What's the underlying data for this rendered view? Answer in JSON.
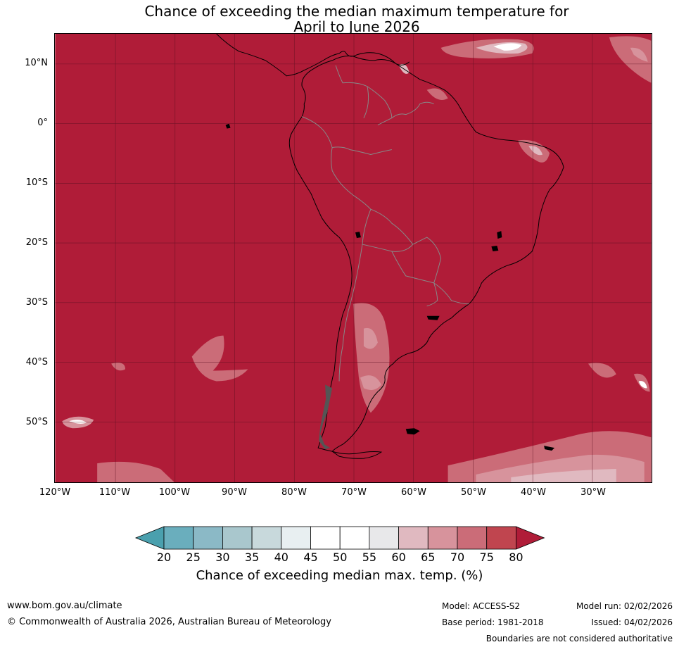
{
  "title": {
    "line1": "Chance of exceeding the median maximum temperature for",
    "line2": "April to June 2026"
  },
  "map": {
    "region": "South America",
    "background_class": "80+",
    "latitude_labels": [
      "10°N",
      "0°",
      "10°S",
      "20°S",
      "30°S",
      "40°S",
      "50°S"
    ],
    "longitude_labels": [
      "120°W",
      "110°W",
      "100°W",
      "90°W",
      "80°W",
      "70°W",
      "60°W",
      "50°W",
      "40°W",
      "30°W"
    ]
  },
  "colorbar": {
    "tick_labels": [
      "20",
      "25",
      "30",
      "35",
      "40",
      "45",
      "50",
      "55",
      "60",
      "65",
      "70",
      "75",
      "80"
    ],
    "colors": {
      "below_20": "#4aa0ae",
      "20-25": "#6aaebd",
      "25-30": "#8bb9c6",
      "30-35": "#a9c7cd",
      "35-40": "#c8d9dc",
      "40-45": "#e8eff1",
      "45-50": "#ffffff",
      "50-55": "#ffffff",
      "55-60": "#e8e8ea",
      "60-65": "#e0b9c0",
      "65-70": "#d7939c",
      "70-75": "#cb6c78",
      "75-80": "#c0454f",
      "above_80": "#b01c38"
    },
    "label": "Chance of exceeding median max. temp. (%)"
  },
  "footer": {
    "website": "www.bom.gov.au/climate",
    "copyright": "© Commonwealth of Australia 2026, Australian Bureau of Meteorology",
    "model": "Model: ACCESS-S2",
    "base_period": "Base period: 1981-2018",
    "model_run": "Model run: 02/02/2026",
    "issued": "Issued: 04/02/2026",
    "disclaimer": "Boundaries are not considered authoritative"
  }
}
